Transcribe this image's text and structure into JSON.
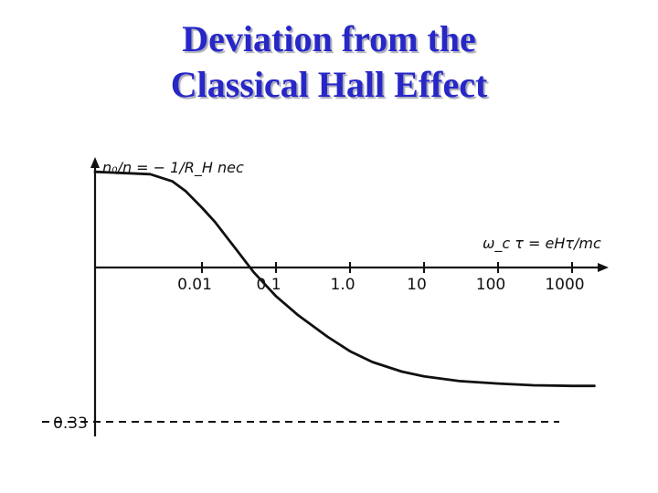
{
  "slide": {
    "title_line1": "Deviation from the",
    "title_line2": "Classical Hall Effect",
    "title_color": "#2727c8"
  },
  "chart_data": {
    "type": "line",
    "ylabel": "n₀/n = − 1/R_H nec",
    "xlabel": "ω_c τ = eHτ/mc",
    "x_tick_labels": [
      "0.01",
      "0.1",
      "1.0",
      "10",
      "100",
      "1000"
    ],
    "x_scale": "log",
    "y_reference_label": "0.33",
    "y_reference_value": 0.33,
    "grid": false,
    "series": [
      {
        "x": [
          0.001,
          0.002,
          0.004,
          0.006,
          0.01,
          0.015,
          0.02,
          0.03,
          0.05,
          0.1,
          0.2,
          0.5,
          1.0,
          2.0,
          5.0,
          10,
          30,
          100,
          300,
          1000,
          2000
        ],
        "y": [
          0.8,
          0.78,
          0.72,
          0.64,
          0.5,
          0.38,
          0.28,
          0.14,
          -0.04,
          -0.24,
          -0.4,
          -0.58,
          -0.7,
          -0.79,
          -0.87,
          -0.91,
          -0.95,
          -0.97,
          -0.985,
          -0.99,
          -0.99
        ]
      }
    ],
    "line_color": "#111111"
  }
}
